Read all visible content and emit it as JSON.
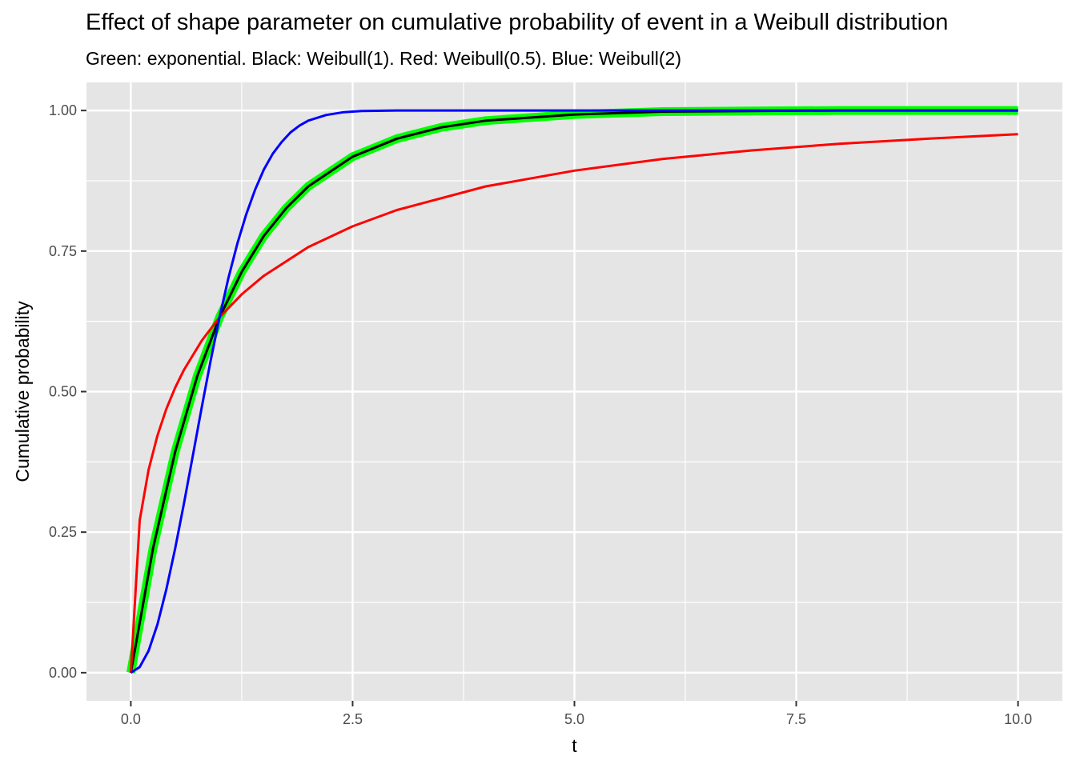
{
  "chart_data": {
    "type": "line",
    "title": "Effect of shape parameter on cumulative probability of event in a Weibull distribution",
    "subtitle": "Green: exponential. Black: Weibull(1). Red: Weibull(0.5). Blue: Weibull(2)",
    "xlabel": "t",
    "ylabel": "Cumulative probability",
    "xlim": [
      -0.5,
      10.5
    ],
    "ylim": [
      -0.05,
      1.05
    ],
    "x_ticks": [
      0,
      2.5,
      5,
      7.5,
      10
    ],
    "x_tick_labels": [
      "0.0",
      "2.5",
      "5.0",
      "7.5",
      "10.0"
    ],
    "y_ticks": [
      0,
      0.25,
      0.5,
      0.75,
      1
    ],
    "y_tick_labels": [
      "0.00",
      "0.25",
      "0.50",
      "0.75",
      "1.00"
    ],
    "grid": true,
    "legend": "none",
    "colors": {
      "panel": "#e5e5e5",
      "grid": "#ffffff",
      "green": "#00ff00",
      "black": "#000000",
      "red": "#ff0000",
      "blue": "#0000ff"
    },
    "series": [
      {
        "color": "#00ff00",
        "width": 11,
        "x": [
          0,
          0.25,
          0.5,
          0.75,
          1,
          1.25,
          1.5,
          1.75,
          2,
          2.5,
          3,
          3.5,
          4,
          5,
          6,
          7,
          8,
          9,
          10
        ],
        "y": [
          0,
          0.221,
          0.393,
          0.528,
          0.632,
          0.713,
          0.777,
          0.826,
          0.865,
          0.918,
          0.95,
          0.97,
          0.982,
          0.993,
          0.998,
          0.999,
          1,
          1,
          1
        ]
      },
      {
        "color": "#000000",
        "width": 3,
        "x": [
          0,
          0.25,
          0.5,
          0.75,
          1,
          1.25,
          1.5,
          1.75,
          2,
          2.5,
          3,
          3.5,
          4,
          5,
          6,
          7,
          8,
          9,
          10
        ],
        "y": [
          0,
          0.221,
          0.393,
          0.528,
          0.632,
          0.713,
          0.777,
          0.826,
          0.865,
          0.918,
          0.95,
          0.97,
          0.982,
          0.993,
          0.998,
          0.999,
          1,
          1,
          1
        ]
      },
      {
        "color": "#ff0000",
        "width": 3,
        "x": [
          0,
          0.1,
          0.2,
          0.3,
          0.4,
          0.5,
          0.6,
          0.8,
          1,
          1.25,
          1.5,
          2,
          2.5,
          3,
          4,
          5,
          6,
          7,
          8,
          9,
          10
        ],
        "y": [
          0,
          0.271,
          0.361,
          0.422,
          0.469,
          0.507,
          0.539,
          0.591,
          0.632,
          0.673,
          0.706,
          0.757,
          0.794,
          0.823,
          0.865,
          0.893,
          0.914,
          0.929,
          0.941,
          0.95,
          0.958
        ]
      },
      {
        "color": "#0000ff",
        "width": 3,
        "x": [
          0,
          0.1,
          0.2,
          0.3,
          0.4,
          0.5,
          0.6,
          0.7,
          0.8,
          0.9,
          1,
          1.1,
          1.2,
          1.3,
          1.4,
          1.5,
          1.6,
          1.7,
          1.8,
          1.9,
          2,
          2.2,
          2.4,
          2.6,
          3,
          4,
          5,
          6,
          8,
          10
        ],
        "y": [
          0,
          0.01,
          0.039,
          0.086,
          0.148,
          0.221,
          0.302,
          0.387,
          0.473,
          0.555,
          0.632,
          0.702,
          0.763,
          0.815,
          0.859,
          0.895,
          0.923,
          0.944,
          0.961,
          0.973,
          0.982,
          0.992,
          0.997,
          0.999,
          1,
          1,
          1,
          1,
          1,
          1
        ]
      }
    ]
  }
}
